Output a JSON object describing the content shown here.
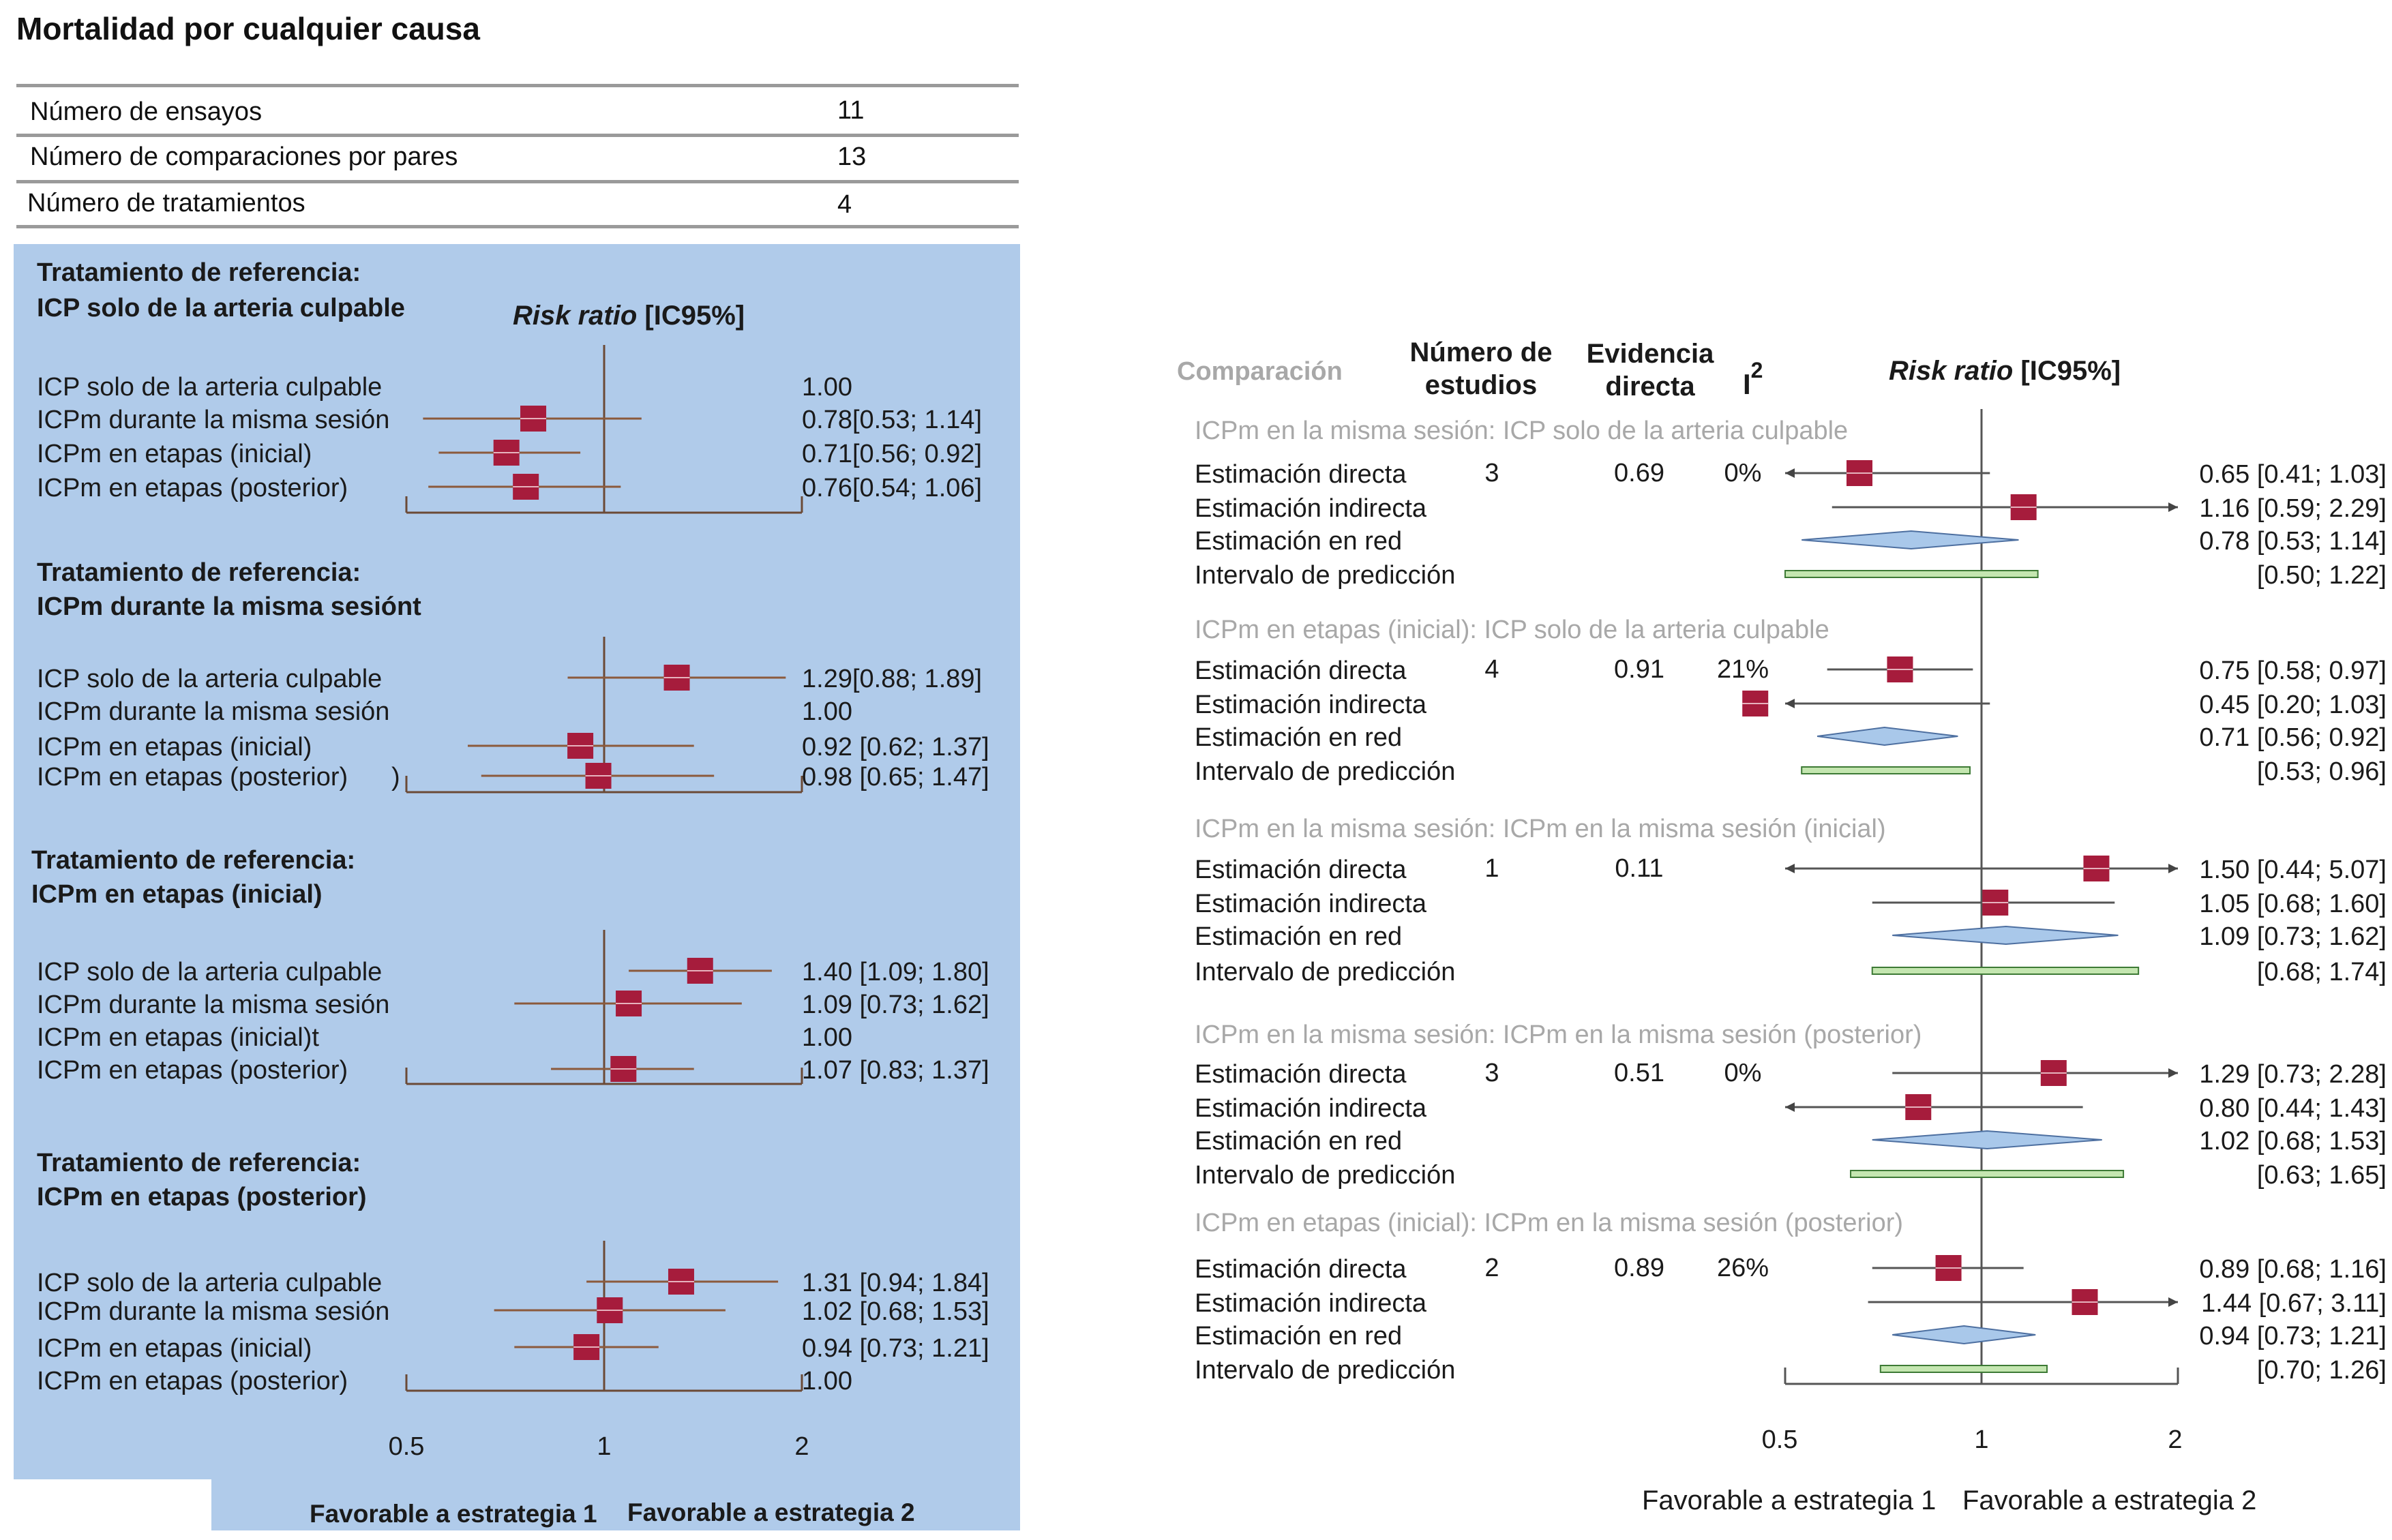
{
  "page_title": "Mortalidad por cualquier causa",
  "summary_table": {
    "rows": [
      {
        "label": "Número de ensayos",
        "value": "11"
      },
      {
        "label": "Número de comparaciones por pares",
        "value": "13"
      },
      {
        "label": "Número de tratamientos",
        "value": "4"
      }
    ]
  },
  "colors": {
    "panel_bg": "#b0cbea",
    "marker": "#a61c3c",
    "ci_line": "#8b5a3c",
    "axis": "#6b4a36",
    "diamond_fill": "#a9c8ea",
    "diamond_stroke": "#4d6fa0",
    "prediction_fill": "#c4e6b0",
    "prediction_stroke": "#3d7a35",
    "grey_text": "#a8a8a8"
  },
  "left_plot": {
    "effect_header_italic": "Risk ratio",
    "effect_header_rest": " [IC95%]",
    "x_ticks": [
      "0.5",
      "1",
      "2"
    ],
    "favour_left": "Favorable a estrategia 1",
    "favour_right": "Favorable a estrategia 2"
  },
  "right_plot": {
    "headers": {
      "comparison": "Comparación",
      "n_studies_line1": "Número de",
      "n_studies_line2": "estudios",
      "direct_line1": "Evidencia",
      "direct_line2": "directa",
      "i2_base": "I",
      "i2_sup": "2",
      "effect_italic": "Risk ratio",
      "effect_rest": " [IC95%]"
    },
    "x_ticks": [
      "0.5",
      "1",
      "2"
    ],
    "favour_left": "Favorable a estrategia 1",
    "favour_right": "Favorable a estrategia 2"
  },
  "chart_data": [
    {
      "type": "forest",
      "title": "Mortalidad por cualquier causa",
      "xlabel": "Risk ratio [IC95%]",
      "x_scale": "log",
      "xlim": [
        0.5,
        2
      ],
      "groups": [
        {
          "title_line1": "Tratamiento de referencia:",
          "title_line2": "ICP solo de la arteria culpable",
          "rows": [
            {
              "label": "ICP solo de la arteria culpable",
              "rr": 1.0,
              "lo": null,
              "hi": null,
              "text": "1.00"
            },
            {
              "label": "ICPm durante la misma sesión",
              "rr": 0.78,
              "lo": 0.53,
              "hi": 1.14,
              "text": "0.78[0.53; 1.14]"
            },
            {
              "label": "ICPm en etapas (inicial)",
              "rr": 0.71,
              "lo": 0.56,
              "hi": 0.92,
              "text": "0.71[0.56; 0.92]"
            },
            {
              "label": "ICPm en etapas (posterior)",
              "rr": 0.76,
              "lo": 0.54,
              "hi": 1.06,
              "text": "0.76[0.54; 1.06]"
            }
          ]
        },
        {
          "title_line1": "Tratamiento de referencia:",
          "title_line2": "ICPm durante la misma sesiónt",
          "rows": [
            {
              "label": "ICP solo de la arteria culpable",
              "rr": 1.29,
              "lo": 0.88,
              "hi": 1.89,
              "text": "1.29[0.88; 1.89]"
            },
            {
              "label": "ICPm durante la misma sesión",
              "rr": 1.0,
              "lo": null,
              "hi": null,
              "text": "1.00"
            },
            {
              "label": "ICPm en etapas (inicial)",
              "rr": 0.92,
              "lo": 0.62,
              "hi": 1.37,
              "text": "0.92 [0.62; 1.37]"
            },
            {
              "label": "ICPm en etapas (posterior)",
              "rr": 0.98,
              "lo": 0.65,
              "hi": 1.47,
              "text": "0.98 [0.65; 1.47]",
              "suffix": ")"
            }
          ]
        },
        {
          "title_line1": "Tratamiento de referencia:",
          "title_line2": "ICPm en etapas (inicial)",
          "rows": [
            {
              "label": "ICP solo de la arteria culpable",
              "rr": 1.4,
              "lo": 1.09,
              "hi": 1.8,
              "text": "1.40 [1.09; 1.80]"
            },
            {
              "label": "ICPm durante la misma sesión",
              "rr": 1.09,
              "lo": 0.73,
              "hi": 1.62,
              "text": "1.09 [0.73; 1.62]"
            },
            {
              "label": "ICPm en etapas (inicial)t",
              "rr": 1.0,
              "lo": null,
              "hi": null,
              "text": "1.00"
            },
            {
              "label": "ICPm en etapas (posterior)",
              "rr": 1.07,
              "lo": 0.83,
              "hi": 1.37,
              "text": "1.07 [0.83; 1.37]"
            }
          ]
        },
        {
          "title_line1": "Tratamiento de referencia:",
          "title_line2": "ICPm en etapas (posterior)",
          "rows": [
            {
              "label": "ICP solo de la arteria culpable",
              "rr": 1.31,
              "lo": 0.94,
              "hi": 1.84,
              "text": "1.31 [0.94; 1.84]"
            },
            {
              "label": "ICPm durante la misma sesión",
              "rr": 1.02,
              "lo": 0.68,
              "hi": 1.53,
              "text": "1.02 [0.68; 1.53]"
            },
            {
              "label": "ICPm en etapas (inicial)",
              "rr": 0.94,
              "lo": 0.73,
              "hi": 1.21,
              "text": "0.94 [0.73; 1.21]"
            },
            {
              "label": "ICPm en etapas (posterior)",
              "rr": 1.0,
              "lo": null,
              "hi": null,
              "text": "1.00"
            }
          ]
        }
      ]
    },
    {
      "type": "forest",
      "xlabel": "Risk ratio [IC95%]",
      "x_scale": "log",
      "xlim": [
        0.5,
        2
      ],
      "groups": [
        {
          "title": "ICPm en la misma sesión: ICP solo de la arteria culpable",
          "n_studies": "3",
          "direct": "0.69",
          "i2": "0%",
          "rows": [
            {
              "label": "Estimación directa",
              "kind": "square",
              "rr": 0.65,
              "lo": 0.41,
              "hi": 1.03,
              "text": "0.65 [0.41; 1.03]"
            },
            {
              "label": "Estimación indirecta",
              "kind": "square",
              "rr": 1.16,
              "lo": 0.59,
              "hi": 2.29,
              "text": "1.16 [0.59; 2.29]"
            },
            {
              "label": "Estimación en red",
              "kind": "diamond",
              "rr": 0.78,
              "lo": 0.53,
              "hi": 1.14,
              "text": "0.78 [0.53; 1.14]"
            },
            {
              "label": "Intervalo de predicción",
              "kind": "prediction",
              "lo": 0.5,
              "hi": 1.22,
              "text": "[0.50; 1.22]"
            }
          ]
        },
        {
          "title": "ICPm en etapas (inicial): ICP solo de la arteria culpable",
          "n_studies": "4",
          "direct": "0.91",
          "i2": "21%",
          "rows": [
            {
              "label": "Estimación directa",
              "kind": "square",
              "rr": 0.75,
              "lo": 0.58,
              "hi": 0.97,
              "text": "0.75 [0.58; 0.97]"
            },
            {
              "label": "Estimación indirecta",
              "kind": "square",
              "rr": 0.45,
              "lo": 0.2,
              "hi": 1.03,
              "text": "0.45 [0.20; 1.03]"
            },
            {
              "label": "Estimación en red",
              "kind": "diamond",
              "rr": 0.71,
              "lo": 0.56,
              "hi": 0.92,
              "text": "0.71 [0.56; 0.92]"
            },
            {
              "label": "Intervalo de predicción",
              "kind": "prediction",
              "lo": 0.53,
              "hi": 0.96,
              "text": "[0.53; 0.96]"
            }
          ]
        },
        {
          "title": "ICPm en la misma sesión: ICPm en la misma sesión (inicial)",
          "n_studies": "1",
          "direct": "0.11",
          "i2": "",
          "rows": [
            {
              "label": "Estimación directa",
              "kind": "square",
              "rr": 1.5,
              "lo": 0.44,
              "hi": 5.07,
              "text": "1.50 [0.44; 5.07]"
            },
            {
              "label": "Estimación indirecta",
              "kind": "square",
              "rr": 1.05,
              "lo": 0.68,
              "hi": 1.6,
              "text": "1.05 [0.68; 1.60]"
            },
            {
              "label": "Estimación en red",
              "kind": "diamond",
              "rr": 1.09,
              "lo": 0.73,
              "hi": 1.62,
              "text": "1.09 [0.73; 1.62]"
            },
            {
              "label": "Intervalo de predicción",
              "kind": "prediction",
              "lo": 0.68,
              "hi": 1.74,
              "text": "[0.68; 1.74]"
            }
          ]
        },
        {
          "title": "ICPm en la misma sesión: ICPm en la misma sesión (posterior)",
          "n_studies": "3",
          "direct": "0.51",
          "i2": "0%",
          "rows": [
            {
              "label": "Estimación directa",
              "kind": "square",
              "rr": 1.29,
              "lo": 0.73,
              "hi": 2.28,
              "text": "1.29 [0.73; 2.28]"
            },
            {
              "label": "Estimación indirecta",
              "kind": "square",
              "rr": 0.8,
              "lo": 0.44,
              "hi": 1.43,
              "text": "0.80 [0.44; 1.43]"
            },
            {
              "label": "Estimación en red",
              "kind": "diamond",
              "rr": 1.02,
              "lo": 0.68,
              "hi": 1.53,
              "text": "1.02 [0.68; 1.53]"
            },
            {
              "label": "Intervalo de predicción",
              "kind": "prediction",
              "lo": 0.63,
              "hi": 1.65,
              "text": "[0.63; 1.65]"
            }
          ]
        },
        {
          "title": "ICPm en etapas (inicial): ICPm en la misma sesión (posterior)",
          "n_studies": "2",
          "direct": "0.89",
          "i2": "26%",
          "rows": [
            {
              "label": "Estimación directa",
              "kind": "square",
              "rr": 0.89,
              "lo": 0.68,
              "hi": 1.16,
              "text": "0.89 [0.68; 1.16]"
            },
            {
              "label": "Estimación indirecta",
              "kind": "square",
              "rr": 1.44,
              "lo": 0.67,
              "hi": 3.11,
              "text": "1.44 [0.67; 3.11]"
            },
            {
              "label": "Estimación en red",
              "kind": "diamond",
              "rr": 0.94,
              "lo": 0.73,
              "hi": 1.21,
              "text": "0.94 [0.73; 1.21]"
            },
            {
              "label": "Intervalo de predicción",
              "kind": "prediction",
              "lo": 0.7,
              "hi": 1.26,
              "text": "[0.70; 1.26]"
            }
          ]
        }
      ]
    }
  ]
}
